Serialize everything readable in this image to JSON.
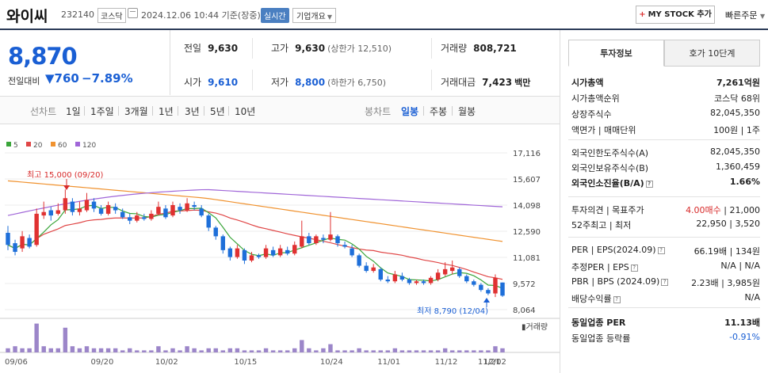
{
  "header": {
    "name": "와이씨",
    "code": "232140",
    "market": "코스닥",
    "date": "2024.12.06 10:44 기준(장중)",
    "realtime": "실시간",
    "company_info": "기업개요",
    "mystock_plus": "+",
    "mystock": "MY STOCK 추가",
    "quick_order": "빠른주문"
  },
  "price": {
    "current": "8,870",
    "change_label": "전일대비",
    "change_arrow": "▼",
    "change": "760",
    "change_pct": "−7.89%"
  },
  "stats": {
    "prev_close": {
      "label": "전일",
      "value": "9,630"
    },
    "high": {
      "label": "고가",
      "value": "9,630",
      "sub": "(상한가 12,510)"
    },
    "volume": {
      "label": "거래량",
      "value": "808,721"
    },
    "open": {
      "label": "시가",
      "value": "9,610"
    },
    "low": {
      "label": "저가",
      "value": "8,800",
      "sub": "(하한가 6,750)"
    },
    "amount": {
      "label": "거래대금",
      "value": "7,423",
      "unit": "백만"
    }
  },
  "chart_tabs": {
    "line_label": "선차트",
    "periods": [
      "1일",
      "1주일",
      "3개월",
      "1년",
      "3년",
      "5년",
      "10년"
    ],
    "candle_label": "봉차트",
    "candles": [
      "일봉",
      "주봉",
      "월봉"
    ],
    "active_candle": "일봉"
  },
  "chart_data": {
    "type": "candlestick",
    "legend": [
      {
        "name": "5",
        "color": "#3aa53a"
      },
      {
        "name": "20",
        "color": "#e04646"
      },
      {
        "name": "60",
        "color": "#f0922f"
      },
      {
        "name": "120",
        "color": "#a066d8"
      }
    ],
    "y_ticks": [
      "17,116",
      "15,607",
      "14,098",
      "12,590",
      "11,081",
      "9,572",
      "8,064"
    ],
    "y_range": [
      8064,
      17116
    ],
    "x_ticks": [
      "09/06",
      "09/20",
      "10/02",
      "10/15",
      "10/24",
      "11/01",
      "11/12",
      "11/21",
      "12/02"
    ],
    "high_label": "최고 15,000 (09/20)",
    "low_label": "최저 8,790 (12/04)",
    "volume_label": "거래량",
    "candles": [
      [
        12500,
        11800,
        12900,
        11500
      ],
      [
        11900,
        11400,
        12100,
        11200
      ],
      [
        11600,
        12300,
        12600,
        11400
      ],
      [
        12200,
        11700,
        12400,
        11600
      ],
      [
        11800,
        13600,
        13900,
        11700
      ],
      [
        13500,
        13700,
        14300,
        13300
      ],
      [
        13800,
        13500,
        14000,
        13200
      ],
      [
        13600,
        13800,
        14200,
        13500
      ],
      [
        13800,
        14500,
        15000,
        13600
      ],
      [
        14300,
        13700,
        14500,
        13500
      ],
      [
        13700,
        13900,
        14300,
        13500
      ],
      [
        13800,
        14400,
        14800,
        13700
      ],
      [
        14300,
        13900,
        14500,
        13700
      ],
      [
        13900,
        13600,
        14100,
        13500
      ],
      [
        13600,
        14100,
        14300,
        13500
      ],
      [
        14000,
        13800,
        14200,
        13600
      ],
      [
        13700,
        13400,
        13900,
        13300
      ],
      [
        13400,
        13200,
        13600,
        13000
      ],
      [
        13200,
        13500,
        13700,
        13100
      ],
      [
        13400,
        13300,
        13600,
        13200
      ],
      [
        13300,
        13600,
        13800,
        13200
      ],
      [
        13600,
        14000,
        14300,
        13500
      ],
      [
        13900,
        13400,
        14100,
        13300
      ],
      [
        13500,
        14100,
        14300,
        13400
      ],
      [
        14000,
        13800,
        14200,
        13600
      ],
      [
        13800,
        14200,
        14500,
        13700
      ],
      [
        14100,
        14000,
        14300,
        13800
      ],
      [
        13900,
        13500,
        14100,
        13400
      ],
      [
        13500,
        12800,
        13600,
        12600
      ],
      [
        12800,
        12300,
        12900,
        12100
      ],
      [
        12300,
        11500,
        12400,
        11300
      ],
      [
        11600,
        11100,
        11700,
        10900
      ],
      [
        11100,
        11600,
        11800,
        11000
      ],
      [
        11500,
        10900,
        11600,
        10700
      ],
      [
        10900,
        11200,
        11400,
        10800
      ],
      [
        11200,
        11100,
        11300,
        11000
      ],
      [
        11100,
        11600,
        11800,
        11000
      ],
      [
        11500,
        11200,
        11700,
        11100
      ],
      [
        11200,
        11600,
        11800,
        11100
      ],
      [
        11500,
        11300,
        11700,
        11200
      ],
      [
        11300,
        11800,
        12000,
        11200
      ],
      [
        11700,
        12300,
        13200,
        11600
      ],
      [
        12300,
        11900,
        12500,
        11800
      ],
      [
        11900,
        12300,
        12400,
        11800
      ],
      [
        12200,
        12100,
        12400,
        11900
      ],
      [
        12100,
        12400,
        13700,
        12000
      ],
      [
        12300,
        11900,
        12400,
        11700
      ],
      [
        11800,
        11700,
        12000,
        11600
      ],
      [
        11600,
        11200,
        11800,
        11100
      ],
      [
        11200,
        10600,
        11300,
        10500
      ],
      [
        10600,
        10300,
        10800,
        10200
      ],
      [
        10300,
        10500,
        10700,
        10200
      ],
      [
        10400,
        9800,
        10500,
        9700
      ],
      [
        9800,
        9700,
        10000,
        9600
      ],
      [
        9700,
        10100,
        10300,
        9600
      ],
      [
        10000,
        9800,
        10200,
        9700
      ],
      [
        9800,
        9600,
        9900,
        9500
      ],
      [
        9600,
        9700,
        9800,
        9500
      ],
      [
        9700,
        9600,
        9800,
        9500
      ],
      [
        9600,
        9900,
        10000,
        9500
      ],
      [
        9800,
        10200,
        10400,
        9700
      ],
      [
        10100,
        10400,
        10800,
        10000
      ],
      [
        10300,
        10500,
        10900,
        10100
      ],
      [
        10400,
        10000,
        10500,
        9900
      ],
      [
        10000,
        9700,
        10100,
        9600
      ],
      [
        9700,
        9500,
        9800,
        9400
      ],
      [
        9500,
        9200,
        9600,
        9100
      ],
      [
        9200,
        9000,
        9300,
        8900
      ],
      [
        9000,
        9900,
        10100,
        8790
      ],
      [
        9630,
        8870,
        9630,
        8800
      ]
    ]
  },
  "right": {
    "tab_active": "투자정보",
    "tab_inactive": "호가 10단계",
    "rows1": [
      {
        "k": "시가총액",
        "v": "7,261억원",
        "b": true
      },
      {
        "k": "시가총액순위",
        "v": "코스닥 68위"
      },
      {
        "k": "상장주식수",
        "v": "82,045,350"
      },
      {
        "k": "액면가 | 매매단위",
        "v": "100원 | 1주"
      }
    ],
    "rows2": [
      {
        "k": "외국인한도주식수(A)",
        "v": "82,045,350"
      },
      {
        "k": "외국인보유주식수(B)",
        "v": "1,360,459"
      },
      {
        "k": "외국인소진율(B/A)",
        "v": "1.66%",
        "b": true,
        "q": true
      }
    ],
    "rows3": [
      {
        "k": "투자의견 | 목표주가",
        "v1": "4.00매수",
        "v2": " | 21,000"
      },
      {
        "k": "52주최고 | 최저",
        "v": "22,950 | 3,520"
      }
    ],
    "rows4": [
      {
        "k": "PER | EPS(2024.09)",
        "v": "66.19배 | 134원",
        "q": true
      },
      {
        "k": "추정PER | EPS",
        "v": "N/A | N/A",
        "q": true
      },
      {
        "k": "PBR | BPS (2024.09)",
        "v": "2.23배 | 3,985원",
        "q": true
      },
      {
        "k": "배당수익률",
        "v": "N/A",
        "q": true
      }
    ],
    "rows5": [
      {
        "k": "동일업종 PER",
        "v": "11.13배",
        "b": true
      },
      {
        "k": "동일업종 등락률",
        "v": "-0.91%",
        "blue": true
      }
    ]
  }
}
